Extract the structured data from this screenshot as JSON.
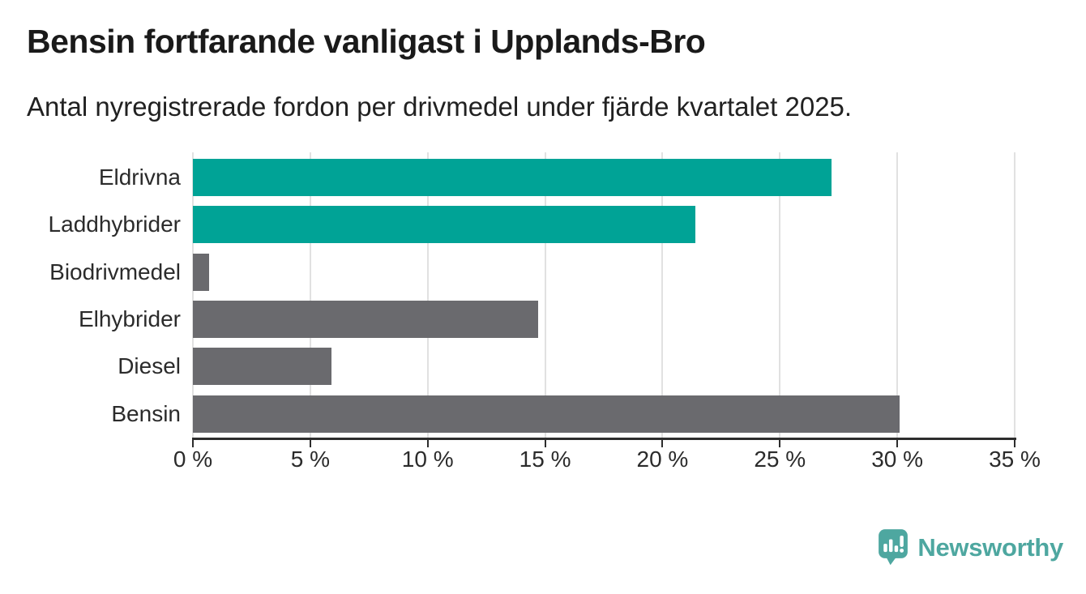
{
  "header": {
    "title": "Bensin fortfarande vanligast i Upplands-Bro",
    "subtitle": "Antal nyregistrerade fordon per drivmedel under fjärde kvartalet 2025."
  },
  "chart_data": {
    "type": "bar",
    "orientation": "horizontal",
    "title": "Bensin fortfarande vanligast i Upplands-Bro",
    "subtitle": "Antal nyregistrerade fordon per drivmedel under fjärde kvartalet 2025.",
    "categories": [
      "Eldrivna",
      "Laddhybrider",
      "Biodrivmedel",
      "Elhybrider",
      "Diesel",
      "Bensin"
    ],
    "values": [
      27.2,
      21.4,
      0.7,
      14.7,
      5.9,
      30.1
    ],
    "unit": "%",
    "bar_colors": [
      "#00a396",
      "#00a396",
      "#6a6a6e",
      "#6a6a6e",
      "#6a6a6e",
      "#6a6a6e"
    ],
    "xlabel": "",
    "ylabel": "",
    "xlim": [
      0,
      35
    ],
    "x_ticks": [
      0,
      5,
      10,
      15,
      20,
      25,
      30,
      35
    ],
    "x_tick_labels": [
      "0 %",
      "5 %",
      "10 %",
      "15 %",
      "20 %",
      "25 %",
      "30 %",
      "35 %"
    ],
    "grid": "vertical-gridlines-on",
    "legend": "none"
  },
  "footer": {
    "brand": "Newsworthy",
    "logo_icon": "newsworthy-speech-bubble-bar-chart-icon"
  },
  "colors": {
    "accent_teal": "#00a396",
    "bar_gray": "#6a6a6e",
    "brand_teal": "#4ea7a0",
    "grid_line": "#e1e1e1",
    "axis_line": "#2d2d2d",
    "text_dark": "#1a1a1a"
  }
}
